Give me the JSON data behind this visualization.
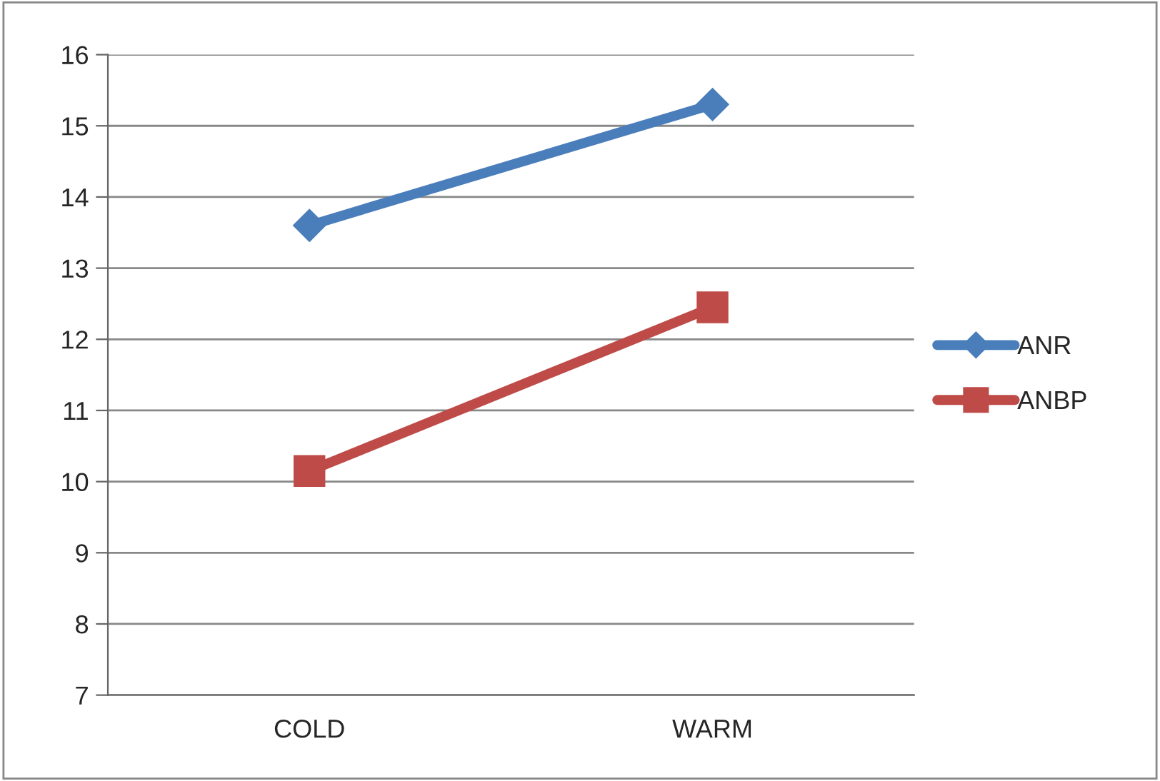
{
  "chart_data": {
    "type": "line",
    "categories": [
      "COLD",
      "WARM"
    ],
    "series": [
      {
        "name": "ANR",
        "color": "#4a7ebb",
        "marker": "diamond",
        "values": [
          13.6,
          15.3
        ]
      },
      {
        "name": "ANBP",
        "color": "#be4b48",
        "marker": "square",
        "values": [
          10.15,
          12.45
        ]
      }
    ],
    "ylim": [
      7,
      16
    ],
    "yticks": [
      7,
      8,
      9,
      10,
      11,
      12,
      13,
      14,
      15,
      16
    ],
    "grid": "y",
    "legend": "right",
    "line_style": "solid"
  }
}
